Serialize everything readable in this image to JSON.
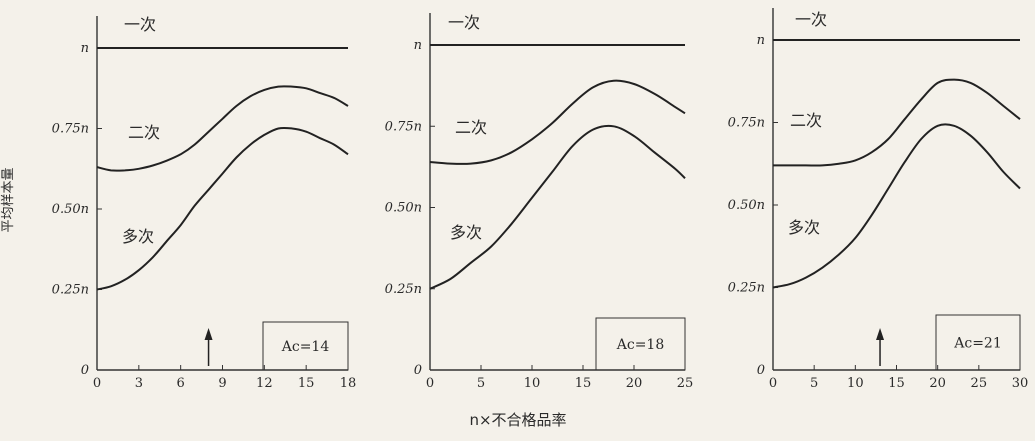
{
  "y_axis_label": "平均样本量",
  "x_axis_label": "n×不合格品率",
  "chart_data": [
    {
      "type": "line",
      "annotation": "Ac=14",
      "x_ticks": [
        "0",
        "3",
        "6",
        "9",
        "12",
        "15",
        "18"
      ],
      "y_ticks": [
        "0",
        "0.25n",
        "0.50n",
        "0.75n",
        "n"
      ],
      "xlim": [
        0,
        18
      ],
      "ylim": [
        0,
        1
      ],
      "arrow_x": 8,
      "series": [
        {
          "name": "一次",
          "x": [
            0,
            18
          ],
          "y": [
            1.0,
            1.0
          ]
        },
        {
          "name": "二次",
          "x": [
            0,
            1,
            2,
            3,
            4,
            5,
            6,
            7,
            8,
            9,
            10,
            11,
            12,
            13,
            14,
            15,
            16,
            17,
            18
          ],
          "y": [
            0.63,
            0.62,
            0.62,
            0.625,
            0.635,
            0.65,
            0.67,
            0.7,
            0.74,
            0.78,
            0.82,
            0.85,
            0.87,
            0.88,
            0.88,
            0.875,
            0.86,
            0.845,
            0.82
          ]
        },
        {
          "name": "多次",
          "x": [
            0,
            1,
            2,
            3,
            4,
            5,
            6,
            7,
            8,
            9,
            10,
            11,
            12,
            13,
            14,
            15,
            16,
            17,
            18
          ],
          "y": [
            0.25,
            0.26,
            0.28,
            0.31,
            0.35,
            0.4,
            0.45,
            0.51,
            0.56,
            0.61,
            0.66,
            0.7,
            0.73,
            0.75,
            0.75,
            0.74,
            0.72,
            0.7,
            0.67
          ]
        }
      ]
    },
    {
      "type": "line",
      "annotation": "Ac=18",
      "x_ticks": [
        "0",
        "5",
        "10",
        "15",
        "20",
        "25"
      ],
      "y_ticks": [
        "0",
        "0.25n",
        "0.50n",
        "0.75n",
        "n"
      ],
      "xlim": [
        0,
        25
      ],
      "ylim": [
        0,
        1
      ],
      "series": [
        {
          "name": "一次",
          "x": [
            0,
            25
          ],
          "y": [
            1.0,
            1.0
          ]
        },
        {
          "name": "二次",
          "x": [
            0,
            2,
            4,
            6,
            8,
            10,
            12,
            14,
            16,
            18,
            20,
            22,
            24,
            25
          ],
          "y": [
            0.64,
            0.635,
            0.635,
            0.645,
            0.67,
            0.71,
            0.76,
            0.82,
            0.87,
            0.89,
            0.88,
            0.85,
            0.81,
            0.79
          ]
        },
        {
          "name": "多次",
          "x": [
            0,
            2,
            4,
            6,
            8,
            10,
            12,
            14,
            16,
            18,
            20,
            22,
            24,
            25
          ],
          "y": [
            0.25,
            0.28,
            0.33,
            0.38,
            0.45,
            0.53,
            0.61,
            0.69,
            0.74,
            0.75,
            0.72,
            0.67,
            0.62,
            0.59
          ]
        }
      ]
    },
    {
      "type": "line",
      "annotation": "Ac=21",
      "x_ticks": [
        "0",
        "5",
        "10",
        "15",
        "20",
        "25",
        "30"
      ],
      "y_ticks": [
        "0",
        "0.25n",
        "0.50n",
        "0.75n",
        "n"
      ],
      "xlim": [
        0,
        30
      ],
      "ylim": [
        0,
        1
      ],
      "arrow_x": 13,
      "series": [
        {
          "name": "一次",
          "x": [
            0,
            30
          ],
          "y": [
            1.0,
            1.0
          ]
        },
        {
          "name": "二次",
          "x": [
            0,
            2,
            4,
            6,
            8,
            10,
            12,
            14,
            16,
            18,
            20,
            22,
            24,
            26,
            28,
            30
          ],
          "y": [
            0.62,
            0.62,
            0.62,
            0.62,
            0.625,
            0.635,
            0.66,
            0.7,
            0.76,
            0.82,
            0.87,
            0.88,
            0.87,
            0.84,
            0.8,
            0.76
          ]
        },
        {
          "name": "多次",
          "x": [
            0,
            2,
            4,
            6,
            8,
            10,
            12,
            14,
            16,
            18,
            20,
            22,
            24,
            26,
            28,
            30
          ],
          "y": [
            0.25,
            0.26,
            0.28,
            0.31,
            0.35,
            0.4,
            0.47,
            0.55,
            0.63,
            0.7,
            0.74,
            0.74,
            0.71,
            0.66,
            0.6,
            0.55
          ]
        }
      ]
    }
  ]
}
